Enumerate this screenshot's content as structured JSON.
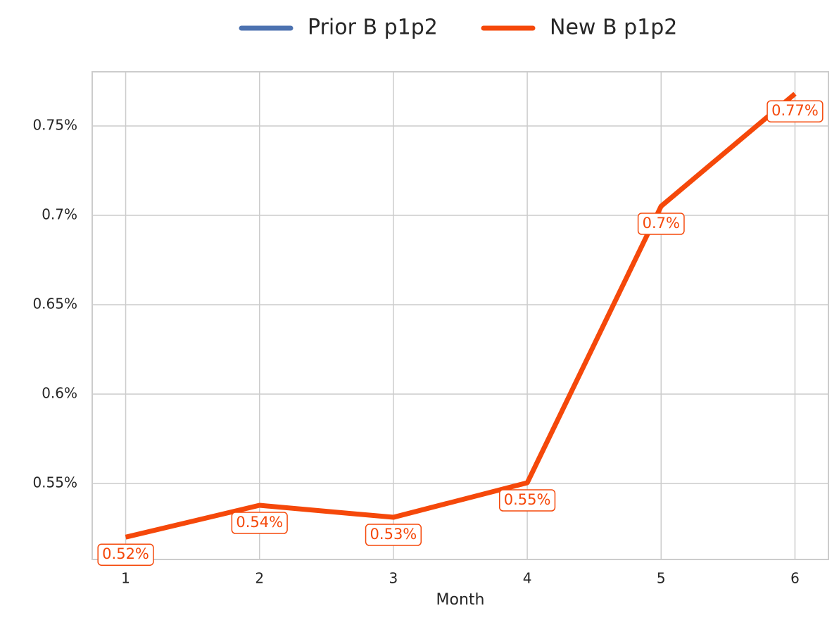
{
  "chart_data": {
    "type": "line",
    "x_label": "Month",
    "x": [
      1,
      2,
      3,
      4,
      5,
      6
    ],
    "xlim": [
      0.75,
      6.25
    ],
    "xticks": [
      1,
      2,
      3,
      4,
      5,
      6
    ],
    "ylim": [
      0.5075,
      0.7803
    ],
    "yticks": [
      {
        "value": 0.55,
        "label": "0.55%"
      },
      {
        "value": 0.6,
        "label": "0.6%"
      },
      {
        "value": 0.65,
        "label": "0.65%"
      },
      {
        "value": 0.7,
        "label": "0.7%"
      },
      {
        "value": 0.75,
        "label": "0.75%"
      }
    ],
    "grid": true,
    "legend": "top",
    "series": [
      {
        "name": "Prior B p1p2",
        "color": "#4c72b0",
        "values": [
          null,
          null,
          null,
          null,
          null,
          null
        ]
      },
      {
        "name": "New B p1p2",
        "color": "#f5480a",
        "values": [
          0.52,
          0.5378,
          0.5311,
          0.5504,
          0.7051,
          0.768
        ],
        "value_labels": [
          "0.52%",
          "0.54%",
          "0.53%",
          "0.55%",
          "0.7%",
          "0.77%"
        ]
      }
    ]
  }
}
